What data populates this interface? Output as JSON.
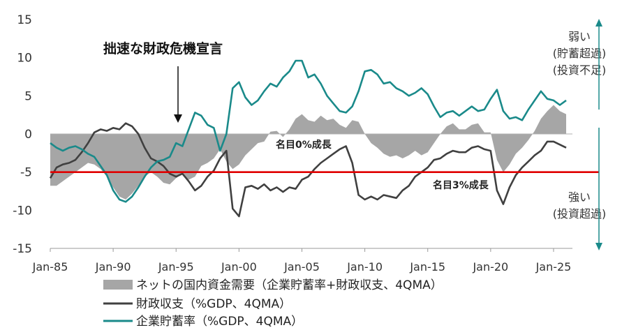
{
  "chart_data": {
    "type": "line",
    "title": "",
    "xlabel": "",
    "ylabel": "",
    "ylim": [
      -15,
      15
    ],
    "yticks": [
      "15",
      "10",
      "5",
      "0",
      "-5",
      "-10",
      "-15"
    ],
    "xlim": [
      1985,
      2026.5
    ],
    "xticks": [
      {
        "label": "Jan-85",
        "x": 1985
      },
      {
        "label": "Jan-90",
        "x": 1990
      },
      {
        "label": "Jan-95",
        "x": 1995
      },
      {
        "label": "Jan-00",
        "x": 2000
      },
      {
        "label": "Jan-05",
        "x": 2005
      },
      {
        "label": "Jan-10",
        "x": 2010
      },
      {
        "label": "Jan-15",
        "x": 2015
      },
      {
        "label": "Jan-20",
        "x": 2020
      },
      {
        "label": "Jan-25",
        "x": 2025
      }
    ],
    "reference_line": {
      "y": -5,
      "color": "#e00000",
      "label": "名目3%成長"
    },
    "series": [
      {
        "name": "ネットの国内資金需要（企業貯蓄率+財政収支、4QMA）",
        "kind": "area",
        "color": "#a6a6a6",
        "points": [
          [
            1985.0,
            -6.8
          ],
          [
            1985.5,
            -6.8
          ],
          [
            1986.0,
            -6.2
          ],
          [
            1986.5,
            -5.6
          ],
          [
            1987.0,
            -5.0
          ],
          [
            1987.5,
            -4.4
          ],
          [
            1988.0,
            -3.8
          ],
          [
            1988.5,
            -4.0
          ],
          [
            1989.0,
            -4.6
          ],
          [
            1989.5,
            -5.6
          ],
          [
            1990.0,
            -7.0
          ],
          [
            1990.5,
            -8.2
          ],
          [
            1991.0,
            -8.6
          ],
          [
            1991.5,
            -7.8
          ],
          [
            1992.0,
            -6.8
          ],
          [
            1992.5,
            -5.6
          ],
          [
            1993.0,
            -5.0
          ],
          [
            1993.5,
            -5.6
          ],
          [
            1994.0,
            -6.4
          ],
          [
            1994.5,
            -6.6
          ],
          [
            1995.0,
            -5.8
          ],
          [
            1995.5,
            -5.2
          ],
          [
            1996.0,
            -6.0
          ],
          [
            1996.5,
            -5.6
          ],
          [
            1997.0,
            -4.2
          ],
          [
            1997.5,
            -3.8
          ],
          [
            1998.0,
            -3.2
          ],
          [
            1998.5,
            -2.0
          ],
          [
            1999.0,
            -3.6
          ],
          [
            1999.5,
            -4.6
          ],
          [
            2000.0,
            -4.0
          ],
          [
            2000.5,
            -2.8
          ],
          [
            2001.0,
            -2.0
          ],
          [
            2001.5,
            -1.2
          ],
          [
            2002.0,
            -1.0
          ],
          [
            2002.5,
            0.3
          ],
          [
            2003.0,
            0.4
          ],
          [
            2003.5,
            -0.4
          ],
          [
            2004.0,
            0.6
          ],
          [
            2004.5,
            2.0
          ],
          [
            2005.0,
            2.6
          ],
          [
            2005.5,
            1.8
          ],
          [
            2006.0,
            1.6
          ],
          [
            2006.5,
            2.4
          ],
          [
            2007.0,
            1.8
          ],
          [
            2007.5,
            2.0
          ],
          [
            2008.0,
            1.2
          ],
          [
            2008.5,
            0.8
          ],
          [
            2009.0,
            1.8
          ],
          [
            2009.5,
            1.6
          ],
          [
            2010.0,
            0.0
          ],
          [
            2010.5,
            -1.2
          ],
          [
            2011.0,
            -1.8
          ],
          [
            2011.5,
            -2.6
          ],
          [
            2012.0,
            -3.0
          ],
          [
            2012.5,
            -2.8
          ],
          [
            2013.0,
            -3.2
          ],
          [
            2013.5,
            -2.8
          ],
          [
            2014.0,
            -2.2
          ],
          [
            2014.5,
            -2.8
          ],
          [
            2015.0,
            -2.4
          ],
          [
            2015.5,
            -1.2
          ],
          [
            2016.0,
            0.0
          ],
          [
            2016.5,
            1.0
          ],
          [
            2017.0,
            1.4
          ],
          [
            2017.5,
            0.6
          ],
          [
            2018.0,
            0.6
          ],
          [
            2018.5,
            1.2
          ],
          [
            2019.0,
            1.4
          ],
          [
            2019.5,
            0.2
          ],
          [
            2020.0,
            0.2
          ],
          [
            2020.5,
            -3.4
          ],
          [
            2021.0,
            -5.0
          ],
          [
            2021.5,
            -4.0
          ],
          [
            2022.0,
            -2.6
          ],
          [
            2022.5,
            -1.8
          ],
          [
            2023.0,
            -0.8
          ],
          [
            2023.5,
            0.4
          ],
          [
            2024.0,
            2.0
          ],
          [
            2024.5,
            3.0
          ],
          [
            2025.0,
            3.8
          ],
          [
            2025.5,
            3.0
          ],
          [
            2026.0,
            2.6
          ]
        ]
      },
      {
        "name": "財政収支（%GDP、4QMA）",
        "kind": "line",
        "color": "#404040",
        "points": [
          [
            1985.0,
            -5.8
          ],
          [
            1985.5,
            -4.4
          ],
          [
            1986.0,
            -4.0
          ],
          [
            1986.5,
            -3.8
          ],
          [
            1987.0,
            -3.4
          ],
          [
            1987.5,
            -2.4
          ],
          [
            1988.0,
            -1.2
          ],
          [
            1988.5,
            0.2
          ],
          [
            1989.0,
            0.6
          ],
          [
            1989.5,
            0.4
          ],
          [
            1990.0,
            0.8
          ],
          [
            1990.5,
            0.6
          ],
          [
            1991.0,
            1.4
          ],
          [
            1991.5,
            1.0
          ],
          [
            1992.0,
            0.0
          ],
          [
            1992.5,
            -1.8
          ],
          [
            1993.0,
            -3.2
          ],
          [
            1993.5,
            -3.6
          ],
          [
            1994.0,
            -4.2
          ],
          [
            1994.5,
            -5.2
          ],
          [
            1995.0,
            -5.6
          ],
          [
            1995.5,
            -5.2
          ],
          [
            1996.0,
            -6.2
          ],
          [
            1996.5,
            -7.4
          ],
          [
            1997.0,
            -6.8
          ],
          [
            1997.5,
            -5.6
          ],
          [
            1998.0,
            -4.8
          ],
          [
            1998.5,
            -3.2
          ],
          [
            1999.0,
            -2.2
          ],
          [
            1999.5,
            -9.8
          ],
          [
            2000.0,
            -10.8
          ],
          [
            2000.5,
            -7.0
          ],
          [
            2001.0,
            -6.8
          ],
          [
            2001.5,
            -7.2
          ],
          [
            2002.0,
            -6.6
          ],
          [
            2002.5,
            -7.4
          ],
          [
            2003.0,
            -7.0
          ],
          [
            2003.5,
            -7.6
          ],
          [
            2004.0,
            -7.0
          ],
          [
            2004.5,
            -7.2
          ],
          [
            2005.0,
            -6.0
          ],
          [
            2005.5,
            -5.6
          ],
          [
            2006.0,
            -4.6
          ],
          [
            2006.5,
            -3.8
          ],
          [
            2007.0,
            -3.2
          ],
          [
            2007.5,
            -2.6
          ],
          [
            2008.0,
            -2.0
          ],
          [
            2008.5,
            -1.6
          ],
          [
            2009.0,
            -3.8
          ],
          [
            2009.5,
            -8.0
          ],
          [
            2010.0,
            -8.6
          ],
          [
            2010.5,
            -8.2
          ],
          [
            2011.0,
            -8.6
          ],
          [
            2011.5,
            -8.0
          ],
          [
            2012.0,
            -8.2
          ],
          [
            2012.5,
            -8.4
          ],
          [
            2013.0,
            -7.4
          ],
          [
            2013.5,
            -6.8
          ],
          [
            2014.0,
            -5.6
          ],
          [
            2014.5,
            -5.0
          ],
          [
            2015.0,
            -4.4
          ],
          [
            2015.5,
            -3.4
          ],
          [
            2016.0,
            -3.2
          ],
          [
            2016.5,
            -2.6
          ],
          [
            2017.0,
            -2.2
          ],
          [
            2017.5,
            -2.4
          ],
          [
            2018.0,
            -2.4
          ],
          [
            2018.5,
            -1.8
          ],
          [
            2019.0,
            -1.6
          ],
          [
            2019.5,
            -2.0
          ],
          [
            2020.0,
            -2.2
          ],
          [
            2020.5,
            -7.4
          ],
          [
            2021.0,
            -9.2
          ],
          [
            2021.5,
            -7.0
          ],
          [
            2022.0,
            -5.4
          ],
          [
            2022.5,
            -4.4
          ],
          [
            2023.0,
            -3.6
          ],
          [
            2023.5,
            -2.8
          ],
          [
            2024.0,
            -2.2
          ],
          [
            2024.5,
            -1.0
          ],
          [
            2025.0,
            -1.0
          ],
          [
            2025.5,
            -1.4
          ],
          [
            2026.0,
            -1.8
          ]
        ]
      },
      {
        "name": "企業貯蓄率（%GDP、4QMA）",
        "kind": "line",
        "color": "#1a8a8a",
        "points": [
          [
            1985.0,
            -1.2
          ],
          [
            1985.5,
            -1.8
          ],
          [
            1986.0,
            -2.2
          ],
          [
            1986.5,
            -1.8
          ],
          [
            1987.0,
            -1.6
          ],
          [
            1987.5,
            -2.0
          ],
          [
            1988.0,
            -2.6
          ],
          [
            1988.5,
            -3.0
          ],
          [
            1989.0,
            -4.2
          ],
          [
            1989.5,
            -5.4
          ],
          [
            1990.0,
            -7.4
          ],
          [
            1990.5,
            -8.6
          ],
          [
            1991.0,
            -8.9
          ],
          [
            1991.5,
            -8.2
          ],
          [
            1992.0,
            -7.0
          ],
          [
            1992.5,
            -5.6
          ],
          [
            1993.0,
            -4.4
          ],
          [
            1993.5,
            -3.6
          ],
          [
            1994.0,
            -3.4
          ],
          [
            1994.5,
            -3.0
          ],
          [
            1995.0,
            -1.2
          ],
          [
            1995.5,
            -1.6
          ],
          [
            1996.0,
            0.6
          ],
          [
            1996.5,
            2.8
          ],
          [
            1997.0,
            2.4
          ],
          [
            1997.5,
            1.2
          ],
          [
            1998.0,
            0.8
          ],
          [
            1998.5,
            -2.2
          ],
          [
            1999.0,
            0.0
          ],
          [
            1999.5,
            6.0
          ],
          [
            2000.0,
            6.8
          ],
          [
            2000.5,
            4.8
          ],
          [
            2001.0,
            3.8
          ],
          [
            2001.5,
            4.4
          ],
          [
            2002.0,
            5.6
          ],
          [
            2002.5,
            6.6
          ],
          [
            2003.0,
            6.2
          ],
          [
            2003.5,
            7.4
          ],
          [
            2004.0,
            8.2
          ],
          [
            2004.5,
            9.6
          ],
          [
            2005.0,
            9.6
          ],
          [
            2005.5,
            7.4
          ],
          [
            2006.0,
            7.8
          ],
          [
            2006.5,
            6.6
          ],
          [
            2007.0,
            5.0
          ],
          [
            2007.5,
            4.0
          ],
          [
            2008.0,
            3.0
          ],
          [
            2008.5,
            2.8
          ],
          [
            2009.0,
            3.6
          ],
          [
            2009.5,
            5.6
          ],
          [
            2010.0,
            8.2
          ],
          [
            2010.5,
            8.4
          ],
          [
            2011.0,
            7.8
          ],
          [
            2011.5,
            6.6
          ],
          [
            2012.0,
            6.8
          ],
          [
            2012.5,
            6.0
          ],
          [
            2013.0,
            5.6
          ],
          [
            2013.5,
            5.0
          ],
          [
            2014.0,
            5.4
          ],
          [
            2014.5,
            6.0
          ],
          [
            2015.0,
            5.2
          ],
          [
            2015.5,
            3.6
          ],
          [
            2016.0,
            2.2
          ],
          [
            2016.5,
            2.8
          ],
          [
            2017.0,
            3.0
          ],
          [
            2017.5,
            2.4
          ],
          [
            2018.0,
            3.0
          ],
          [
            2018.5,
            3.6
          ],
          [
            2019.0,
            3.0
          ],
          [
            2019.5,
            3.2
          ],
          [
            2020.0,
            4.6
          ],
          [
            2020.5,
            5.8
          ],
          [
            2021.0,
            3.0
          ],
          [
            2021.5,
            2.0
          ],
          [
            2022.0,
            2.2
          ],
          [
            2022.5,
            1.8
          ],
          [
            2023.0,
            3.2
          ],
          [
            2023.5,
            4.4
          ],
          [
            2024.0,
            5.6
          ],
          [
            2024.5,
            4.6
          ],
          [
            2025.0,
            4.4
          ],
          [
            2025.5,
            3.8
          ],
          [
            2026.0,
            4.4
          ]
        ]
      }
    ]
  },
  "annotations": {
    "crisis_declaration": "拙速な財政危機宣言",
    "nominal_zero": "名目0%成長",
    "nominal_three": "名目3%成長",
    "weak_line1": "弱い",
    "weak_line2": "(貯蓄超過)",
    "weak_line3": "(投資不足)",
    "strong_line1": "強い",
    "strong_line2": "(投資超過)"
  },
  "legend": [
    {
      "label": "ネットの国内資金需要（企業貯蓄率+財政収支、4QMA）",
      "color": "#a6a6a6",
      "kind": "box"
    },
    {
      "label": "財政収支（%GDP、4QMA）",
      "color": "#404040",
      "kind": "line"
    },
    {
      "label": "企業貯蓄率（%GDP、4QMA）",
      "color": "#1a8a8a",
      "kind": "line"
    }
  ],
  "side_arrow_color": "#1a8a8a"
}
